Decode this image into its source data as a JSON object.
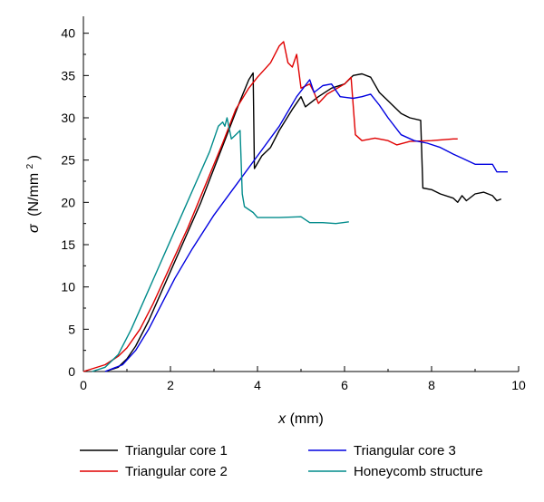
{
  "chart_data": {
    "type": "line",
    "title": "",
    "xlabel": "x (mm)",
    "xlabel_symbol": "x",
    "xlabel_unit": "(mm)",
    "ylabel": "σ (N/mm²)",
    "ylabel_symbol": "σ",
    "ylabel_unit": "(N/mm",
    "ylabel_unit_sup": "2",
    "ylabel_unit_close": ")",
    "xlim": [
      0,
      10
    ],
    "ylim": [
      0,
      42
    ],
    "xticks": [
      0,
      2,
      4,
      6,
      8,
      10
    ],
    "yticks": [
      0,
      5,
      10,
      15,
      20,
      25,
      30,
      35,
      40
    ],
    "grid": false,
    "legend_position": "bottom",
    "series": [
      {
        "name": "Triangular core 1",
        "color": "#000000",
        "points": [
          [
            0.5,
            0
          ],
          [
            0.8,
            0.5
          ],
          [
            1.0,
            1.5
          ],
          [
            1.2,
            3
          ],
          [
            1.5,
            6
          ],
          [
            1.8,
            9.5
          ],
          [
            2.1,
            13
          ],
          [
            2.4,
            16.5
          ],
          [
            2.7,
            20
          ],
          [
            3.0,
            24
          ],
          [
            3.3,
            28
          ],
          [
            3.6,
            32
          ],
          [
            3.8,
            34.5
          ],
          [
            3.9,
            35.3
          ],
          [
            3.93,
            24
          ],
          [
            4.1,
            25.5
          ],
          [
            4.3,
            26.5
          ],
          [
            4.5,
            28.5
          ],
          [
            4.8,
            31
          ],
          [
            5.0,
            32.5
          ],
          [
            5.1,
            31.3
          ],
          [
            5.4,
            32.5
          ],
          [
            5.7,
            33.5
          ],
          [
            6.0,
            34
          ],
          [
            6.2,
            35
          ],
          [
            6.4,
            35.2
          ],
          [
            6.6,
            34.8
          ],
          [
            6.8,
            33
          ],
          [
            7.0,
            32
          ],
          [
            7.3,
            30.5
          ],
          [
            7.5,
            30
          ],
          [
            7.75,
            29.7
          ],
          [
            7.8,
            21.7
          ],
          [
            8.0,
            21.5
          ],
          [
            8.2,
            21
          ],
          [
            8.5,
            20.5
          ],
          [
            8.6,
            20
          ],
          [
            8.7,
            20.8
          ],
          [
            8.8,
            20.2
          ],
          [
            9.0,
            21
          ],
          [
            9.2,
            21.2
          ],
          [
            9.4,
            20.8
          ],
          [
            9.5,
            20.2
          ],
          [
            9.6,
            20.4
          ]
        ]
      },
      {
        "name": "Triangular core 2",
        "color": "#e00000",
        "points": [
          [
            0,
            0
          ],
          [
            0.5,
            0.8
          ],
          [
            0.8,
            1.8
          ],
          [
            1.0,
            2.8
          ],
          [
            1.3,
            5
          ],
          [
            1.6,
            8
          ],
          [
            2.0,
            12.5
          ],
          [
            2.4,
            17
          ],
          [
            2.8,
            22
          ],
          [
            3.2,
            27
          ],
          [
            3.5,
            31
          ],
          [
            3.8,
            33.5
          ],
          [
            4.0,
            34.8
          ],
          [
            4.3,
            36.5
          ],
          [
            4.5,
            38.5
          ],
          [
            4.6,
            39
          ],
          [
            4.7,
            36.5
          ],
          [
            4.8,
            36
          ],
          [
            4.9,
            37.5
          ],
          [
            5.0,
            33.5
          ],
          [
            5.2,
            34
          ],
          [
            5.3,
            33
          ],
          [
            5.4,
            31.7
          ],
          [
            5.6,
            32.8
          ],
          [
            6.0,
            34
          ],
          [
            6.15,
            34.8
          ],
          [
            6.25,
            28
          ],
          [
            6.4,
            27.3
          ],
          [
            6.7,
            27.6
          ],
          [
            7.0,
            27.3
          ],
          [
            7.2,
            26.8
          ],
          [
            7.5,
            27.2
          ],
          [
            8.0,
            27.3
          ],
          [
            8.5,
            27.5
          ],
          [
            8.6,
            27.5
          ]
        ]
      },
      {
        "name": "Triangular core 3",
        "color": "#0000e0",
        "points": [
          [
            0.5,
            0
          ],
          [
            0.9,
            0.8
          ],
          [
            1.2,
            2.5
          ],
          [
            1.5,
            5
          ],
          [
            1.8,
            8
          ],
          [
            2.1,
            11
          ],
          [
            2.5,
            14.5
          ],
          [
            3.0,
            18.5
          ],
          [
            3.5,
            22
          ],
          [
            4.0,
            25.5
          ],
          [
            4.5,
            29
          ],
          [
            4.9,
            32.5
          ],
          [
            5.2,
            34.5
          ],
          [
            5.3,
            33
          ],
          [
            5.5,
            33.8
          ],
          [
            5.7,
            34
          ],
          [
            5.9,
            32.5
          ],
          [
            6.2,
            32.3
          ],
          [
            6.4,
            32.5
          ],
          [
            6.6,
            32.8
          ],
          [
            6.8,
            31.5
          ],
          [
            7.0,
            30
          ],
          [
            7.3,
            28
          ],
          [
            7.6,
            27.3
          ],
          [
            7.9,
            27
          ],
          [
            8.2,
            26.5
          ],
          [
            8.5,
            25.7
          ],
          [
            8.8,
            25
          ],
          [
            9.0,
            24.5
          ],
          [
            9.4,
            24.5
          ],
          [
            9.5,
            23.6
          ],
          [
            9.75,
            23.6
          ]
        ]
      },
      {
        "name": "Honeycomb structure",
        "color": "#008b8b",
        "points": [
          [
            0.2,
            0
          ],
          [
            0.5,
            0.5
          ],
          [
            0.8,
            2
          ],
          [
            1.1,
            5
          ],
          [
            1.4,
            8.5
          ],
          [
            1.7,
            12
          ],
          [
            2.0,
            15.5
          ],
          [
            2.3,
            19
          ],
          [
            2.6,
            22.5
          ],
          [
            2.9,
            26
          ],
          [
            3.1,
            29
          ],
          [
            3.2,
            29.5
          ],
          [
            3.25,
            29
          ],
          [
            3.3,
            30
          ],
          [
            3.4,
            27.5
          ],
          [
            3.5,
            28
          ],
          [
            3.6,
            28.5
          ],
          [
            3.65,
            21
          ],
          [
            3.7,
            19.5
          ],
          [
            3.9,
            18.8
          ],
          [
            4.0,
            18.2
          ],
          [
            4.5,
            18.2
          ],
          [
            5.0,
            18.3
          ],
          [
            5.2,
            17.6
          ],
          [
            5.5,
            17.6
          ],
          [
            5.8,
            17.5
          ],
          [
            6.1,
            17.7
          ]
        ]
      }
    ]
  }
}
